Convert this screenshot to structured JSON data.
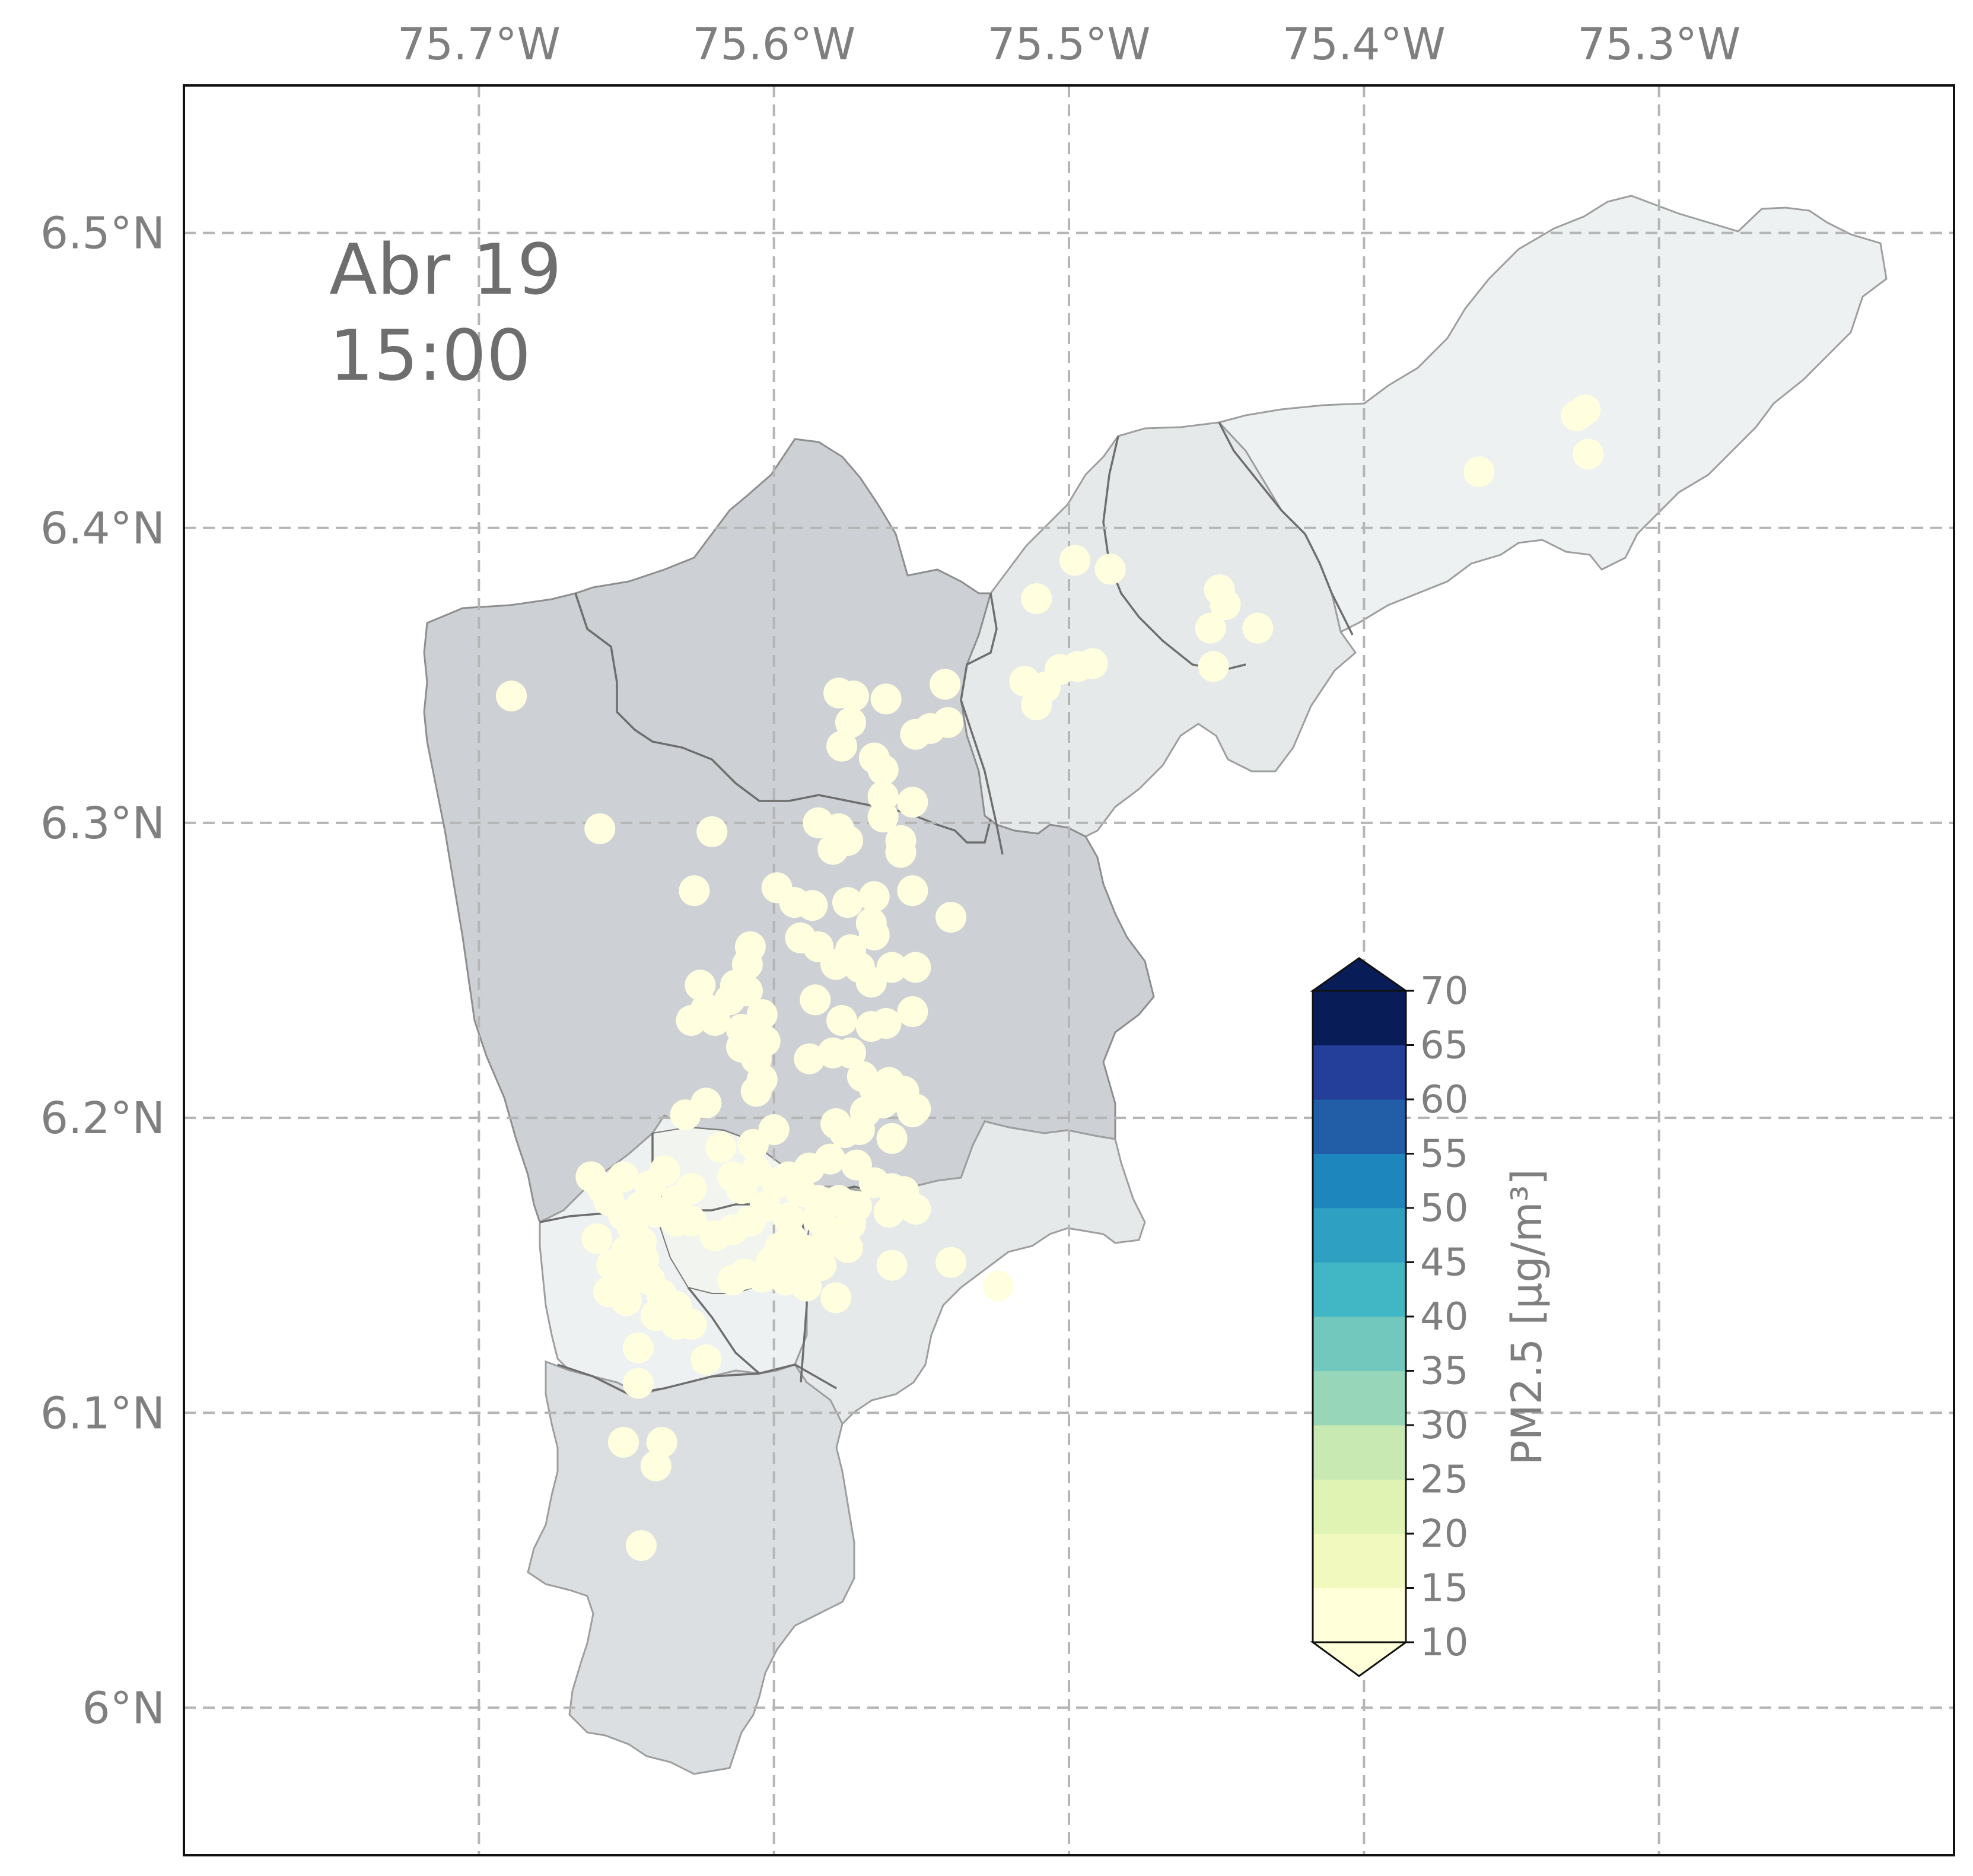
{
  "map": {
    "timestamp_line1": "Abr 19",
    "timestamp_line2": "15:00",
    "lon_labels": [
      "75.7°W",
      "75.6°W",
      "75.5°W",
      "75.4°W",
      "75.3°W"
    ],
    "lat_labels": [
      "6.5°N",
      "6.4°N",
      "6.3°N",
      "6.2°N",
      "6.1°N",
      "6°N"
    ],
    "lon_ticks": [
      -75.7,
      -75.6,
      -75.5,
      -75.4,
      -75.3
    ],
    "lat_ticks": [
      6.5,
      6.4,
      6.3,
      6.2,
      6.1,
      6.0
    ],
    "extent": {
      "lon_min": -75.8,
      "lon_max": -75.2,
      "lat_min": 5.95,
      "lat_max": 6.55
    },
    "grid": true,
    "station_color": "#ffffe0",
    "region_colors": [
      "#cdd0d4",
      "#d8dbde",
      "#e6e9ea",
      "#eef1f1",
      "#f2f5ef"
    ],
    "stations": [
      [
        -75.689,
        6.343
      ],
      [
        -75.659,
        6.298
      ],
      [
        -75.621,
        6.297
      ],
      [
        -75.627,
        6.277
      ],
      [
        -75.578,
        6.344
      ],
      [
        -75.573,
        6.343
      ],
      [
        -75.562,
        6.342
      ],
      [
        -75.574,
        6.334
      ],
      [
        -75.577,
        6.326
      ],
      [
        -75.566,
        6.322
      ],
      [
        -75.563,
        6.318
      ],
      [
        -75.542,
        6.347
      ],
      [
        -75.541,
        6.334
      ],
      [
        -75.547,
        6.332
      ],
      [
        -75.552,
        6.33
      ],
      [
        -75.515,
        6.348
      ],
      [
        -75.508,
        6.346
      ],
      [
        -75.511,
        6.34
      ],
      [
        -75.503,
        6.352
      ],
      [
        -75.497,
        6.353
      ],
      [
        -75.492,
        6.354
      ],
      [
        -75.511,
        6.376
      ],
      [
        -75.498,
        6.389
      ],
      [
        -75.486,
        6.386
      ],
      [
        -75.449,
        6.379
      ],
      [
        -75.447,
        6.374
      ],
      [
        -75.452,
        6.366
      ],
      [
        -75.451,
        6.353
      ],
      [
        -75.436,
        6.366
      ],
      [
        -75.361,
        6.419
      ],
      [
        -75.328,
        6.438
      ],
      [
        -75.325,
        6.44
      ],
      [
        -75.324,
        6.425
      ],
      [
        -75.585,
        6.3
      ],
      [
        -75.578,
        6.298
      ],
      [
        -75.575,
        6.294
      ],
      [
        -75.58,
        6.291
      ],
      [
        -75.563,
        6.309
      ],
      [
        -75.563,
        6.302
      ],
      [
        -75.553,
        6.307
      ],
      [
        -75.557,
        6.294
      ],
      [
        -75.557,
        6.29
      ],
      [
        -75.599,
        6.278
      ],
      [
        -75.593,
        6.273
      ],
      [
        -75.587,
        6.272
      ],
      [
        -75.575,
        6.273
      ],
      [
        -75.566,
        6.275
      ],
      [
        -75.553,
        6.277
      ],
      [
        -75.54,
        6.268
      ],
      [
        -75.567,
        6.266
      ],
      [
        -75.566,
        6.262
      ],
      [
        -75.591,
        6.261
      ],
      [
        -75.585,
        6.258
      ],
      [
        -75.574,
        6.257
      ],
      [
        -75.571,
        6.251
      ],
      [
        -75.567,
        6.246
      ],
      [
        -75.56,
        6.251
      ],
      [
        -75.552,
        6.251
      ],
      [
        -75.579,
        6.252
      ],
      [
        -75.608,
        6.258
      ],
      [
        -75.609,
        6.252
      ],
      [
        -75.613,
        6.245
      ],
      [
        -75.625,
        6.245
      ],
      [
        -75.623,
        6.237
      ],
      [
        -75.62,
        6.233
      ],
      [
        -75.628,
        6.233
      ],
      [
        -75.615,
        6.24
      ],
      [
        -75.609,
        6.243
      ],
      [
        -75.611,
        6.23
      ],
      [
        -75.604,
        6.235
      ],
      [
        -75.603,
        6.226
      ],
      [
        -75.606,
        6.22
      ],
      [
        -75.611,
        6.224
      ],
      [
        -75.604,
        6.213
      ],
      [
        -75.606,
        6.209
      ],
      [
        -75.588,
        6.22
      ],
      [
        -75.58,
        6.222
      ],
      [
        -75.574,
        6.222
      ],
      [
        -75.586,
        6.24
      ],
      [
        -75.577,
        6.233
      ],
      [
        -75.567,
        6.231
      ],
      [
        -75.562,
        6.232
      ],
      [
        -75.553,
        6.236
      ],
      [
        -75.57,
        6.214
      ],
      [
        -75.566,
        6.21
      ],
      [
        -75.561,
        6.212
      ],
      [
        -75.559,
        6.207
      ],
      [
        -75.552,
        6.203
      ],
      [
        -75.556,
        6.209
      ],
      [
        -75.563,
        6.205
      ],
      [
        -75.569,
        6.202
      ],
      [
        -75.579,
        6.198
      ],
      [
        -75.576,
        6.195
      ],
      [
        -75.571,
        6.196
      ],
      [
        -75.56,
        6.193
      ],
      [
        -75.553,
        6.202
      ],
      [
        -75.63,
        6.201
      ],
      [
        -75.623,
        6.205
      ],
      [
        -75.618,
        6.19
      ],
      [
        -75.607,
        6.191
      ],
      [
        -75.6,
        6.196
      ],
      [
        -75.614,
        6.18
      ],
      [
        -75.611,
        6.176
      ],
      [
        -75.606,
        6.182
      ],
      [
        -75.599,
        6.178
      ],
      [
        -75.603,
        6.17
      ],
      [
        -75.608,
        6.165
      ],
      [
        -75.614,
        6.162
      ],
      [
        -75.62,
        6.16
      ],
      [
        -75.628,
        6.165
      ],
      [
        -75.633,
        6.165
      ],
      [
        -75.64,
        6.168
      ],
      [
        -75.645,
        6.17
      ],
      [
        -75.642,
        6.177
      ],
      [
        -75.633,
        6.172
      ],
      [
        -75.628,
        6.176
      ],
      [
        -75.637,
        6.182
      ],
      [
        -75.651,
        6.18
      ],
      [
        -75.658,
        6.176
      ],
      [
        -75.662,
        6.18
      ],
      [
        -75.656,
        6.172
      ],
      [
        -75.651,
        6.167
      ],
      [
        -75.648,
        6.163
      ],
      [
        -75.645,
        6.158
      ],
      [
        -75.65,
        6.155
      ],
      [
        -75.644,
        6.152
      ],
      [
        -75.642,
        6.145
      ],
      [
        -75.638,
        6.14
      ],
      [
        -75.633,
        6.136
      ],
      [
        -75.628,
        6.13
      ],
      [
        -75.633,
        6.13
      ],
      [
        -75.64,
        6.133
      ],
      [
        -75.65,
        6.138
      ],
      [
        -75.656,
        6.141
      ],
      [
        -75.66,
        6.159
      ],
      [
        -75.655,
        6.15
      ],
      [
        -75.65,
        6.147
      ],
      [
        -75.645,
        6.146
      ],
      [
        -75.61,
        6.147
      ],
      [
        -75.614,
        6.145
      ],
      [
        -75.604,
        6.146
      ],
      [
        -75.599,
        6.148
      ],
      [
        -75.596,
        6.145
      ],
      [
        -75.598,
        6.156
      ],
      [
        -75.601,
        6.151
      ],
      [
        -75.585,
        6.166
      ],
      [
        -75.579,
        6.16
      ],
      [
        -75.583,
        6.157
      ],
      [
        -75.575,
        6.156
      ],
      [
        -75.574,
        6.164
      ],
      [
        -75.572,
        6.17
      ],
      [
        -75.578,
        6.172
      ],
      [
        -75.585,
        6.172
      ],
      [
        -75.591,
        6.175
      ],
      [
        -75.595,
        6.18
      ],
      [
        -75.588,
        6.183
      ],
      [
        -75.581,
        6.186
      ],
      [
        -75.572,
        6.184
      ],
      [
        -75.566,
        6.178
      ],
      [
        -75.56,
        6.176
      ],
      [
        -75.556,
        6.175
      ],
      [
        -75.552,
        6.169
      ],
      [
        -75.561,
        6.168
      ],
      [
        -75.595,
        6.166
      ],
      [
        -75.594,
        6.159
      ],
      [
        -75.589,
        6.155
      ],
      [
        -75.584,
        6.15
      ],
      [
        -75.56,
        6.15
      ],
      [
        -75.593,
        6.15
      ],
      [
        -75.589,
        6.143
      ],
      [
        -75.579,
        6.139
      ],
      [
        -75.584,
        6.165
      ],
      [
        -75.54,
        6.151
      ],
      [
        -75.524,
        6.143
      ],
      [
        -75.646,
        6.122
      ],
      [
        -75.646,
        6.11
      ],
      [
        -75.651,
        6.09
      ],
      [
        -75.638,
        6.09
      ],
      [
        -75.64,
        6.082
      ],
      [
        -75.623,
        6.118
      ],
      [
        -75.645,
        6.055
      ]
    ]
  },
  "colorbar": {
    "title": "PM2.5 [μg/m³]",
    "ticks": [
      "10",
      "15",
      "20",
      "25",
      "30",
      "35",
      "40",
      "45",
      "50",
      "55",
      "60",
      "65",
      "70"
    ],
    "colors": [
      "#ffffd9",
      "#f1f9bf",
      "#e0f3b2",
      "#c9e9b3",
      "#97d6b9",
      "#73c8bd",
      "#41b6c4",
      "#2ea1c2",
      "#1d87bd",
      "#225ea8",
      "#233f99",
      "#081d58"
    ]
  }
}
